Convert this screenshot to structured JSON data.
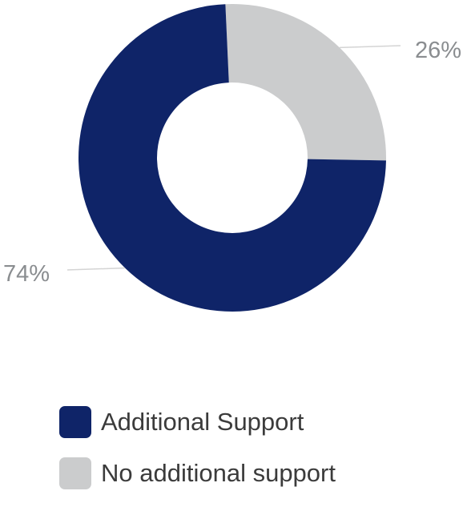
{
  "chart_data": {
    "type": "pie",
    "variant": "donut",
    "categories": [
      "Additional Support",
      "No additional support"
    ],
    "values": [
      74,
      26
    ],
    "value_labels": [
      "74%",
      "26%"
    ],
    "colors": [
      "#0f2468",
      "#cbcccd"
    ],
    "title": "",
    "legend_placement": "bottom-left"
  },
  "legend": {
    "items": [
      {
        "label": "Additional Support",
        "color": "#0f2468"
      },
      {
        "label": "No additional support",
        "color": "#cbcccd"
      }
    ]
  }
}
